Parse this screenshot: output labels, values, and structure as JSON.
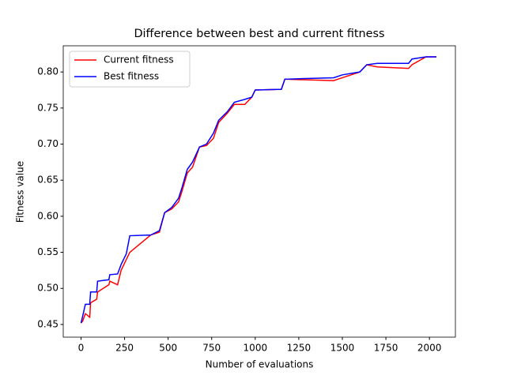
{
  "chart_data": {
    "type": "line",
    "title": "Difference between best and current fitness",
    "xlabel": "Number of evaluations",
    "ylabel": "Fitness value",
    "x": [
      0,
      10,
      25,
      50,
      55,
      90,
      95,
      160,
      165,
      210,
      230,
      260,
      280,
      400,
      450,
      480,
      520,
      560,
      580,
      610,
      640,
      680,
      720,
      760,
      790,
      840,
      880,
      940,
      980,
      1000,
      1150,
      1170,
      1450,
      1500,
      1600,
      1640,
      1700,
      1880,
      1900,
      1980,
      2040
    ],
    "series": [
      {
        "name": "Current fitness",
        "color": "#ff0000",
        "values": [
          0.452,
          0.455,
          0.465,
          0.46,
          0.48,
          0.485,
          0.495,
          0.505,
          0.51,
          0.505,
          0.525,
          0.54,
          0.55,
          0.574,
          0.578,
          0.605,
          0.61,
          0.62,
          0.635,
          0.66,
          0.668,
          0.696,
          0.698,
          0.708,
          0.73,
          0.743,
          0.755,
          0.755,
          0.765,
          0.775,
          0.776,
          0.79,
          0.788,
          0.792,
          0.8,
          0.81,
          0.807,
          0.805,
          0.81,
          0.821,
          0.821
        ]
      },
      {
        "name": "Best fitness",
        "color": "#0000ff",
        "values": [
          0.452,
          0.462,
          0.478,
          0.478,
          0.495,
          0.495,
          0.51,
          0.512,
          0.519,
          0.52,
          0.533,
          0.548,
          0.573,
          0.574,
          0.58,
          0.605,
          0.612,
          0.625,
          0.64,
          0.665,
          0.675,
          0.696,
          0.7,
          0.715,
          0.733,
          0.745,
          0.758,
          0.762,
          0.765,
          0.775,
          0.776,
          0.79,
          0.792,
          0.796,
          0.8,
          0.81,
          0.812,
          0.812,
          0.818,
          0.821,
          0.821
        ]
      }
    ],
    "xlim": [
      -102,
      2149
    ],
    "xticks": [
      0,
      250,
      500,
      750,
      1000,
      1250,
      1500,
      1750,
      2000
    ],
    "ylim": [
      0.4324,
      0.8363
    ],
    "yticks": [
      0.45,
      {
        "value": 0.5,
        "label": "0.50"
      },
      0.55,
      {
        "value": 0.6,
        "label": "0.60"
      },
      0.65,
      {
        "value": 0.7,
        "label": "0.70"
      },
      0.75,
      {
        "value": 0.8,
        "label": "0.80"
      }
    ],
    "legend": "upper left"
  }
}
